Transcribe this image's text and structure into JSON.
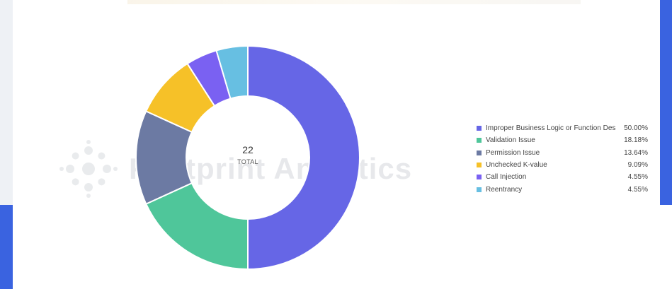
{
  "chart_data": {
    "type": "pie",
    "style": "donut",
    "total_value": "22",
    "total_label": "TOTAL",
    "slices": [
      {
        "label": "Improper Business Logic or Function Design",
        "value": 11,
        "percent": "50.00%",
        "color": "#6666e6"
      },
      {
        "label": "Validation Issue",
        "value": 4,
        "percent": "18.18%",
        "color": "#4fc69a"
      },
      {
        "label": "Permission Issue",
        "value": 3,
        "percent": "13.64%",
        "color": "#6c7aa3"
      },
      {
        "label": "Unchecked K-value",
        "value": 2,
        "percent": "9.09%",
        "color": "#f6c128"
      },
      {
        "label": "Call Injection",
        "value": 1,
        "percent": "4.55%",
        "color": "#7a61f2"
      },
      {
        "label": "Reentrancy",
        "value": 1,
        "percent": "4.55%",
        "color": "#67bfe2"
      }
    ],
    "legend_placement": "right"
  },
  "watermark": {
    "text": "Footprint Analytics"
  }
}
